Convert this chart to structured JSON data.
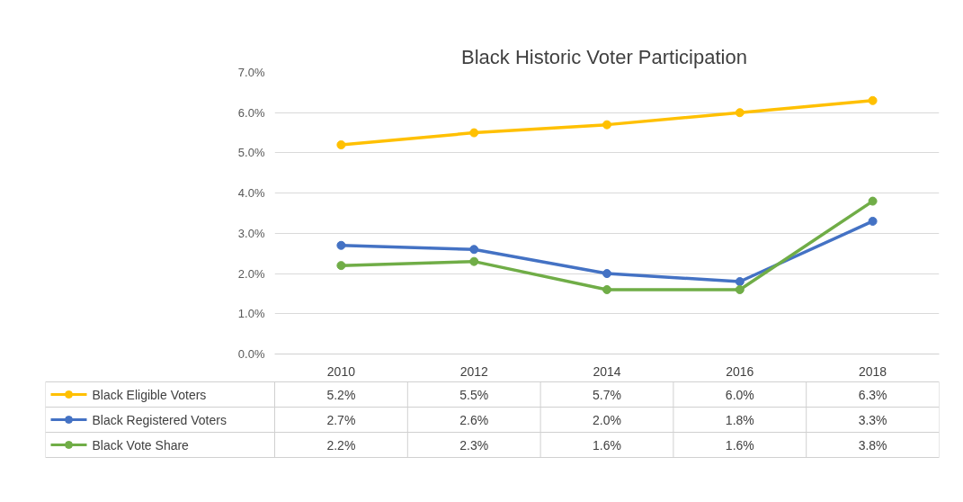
{
  "chart_data": {
    "type": "line",
    "title": "Black  Historic Voter Participation",
    "categories": [
      "2010",
      "2012",
      "2014",
      "2016",
      "2018"
    ],
    "series": [
      {
        "name": "Black Eligible Voters",
        "color": "#ffc000",
        "values": [
          5.2,
          5.5,
          5.7,
          6.0,
          6.3
        ],
        "value_labels": [
          "5.2%",
          "5.5%",
          "5.7%",
          "6.0%",
          "6.3%"
        ]
      },
      {
        "name": "Black Registered Voters",
        "color": "#4472c4",
        "values": [
          2.7,
          2.6,
          2.0,
          1.8,
          3.3
        ],
        "value_labels": [
          "2.7%",
          "2.6%",
          "2.0%",
          "1.8%",
          "3.3%"
        ]
      },
      {
        "name": "Black Vote Share",
        "color": "#70ad47",
        "values": [
          2.2,
          2.3,
          1.6,
          1.6,
          3.8
        ],
        "value_labels": [
          "2.2%",
          "2.3%",
          "1.6%",
          "1.6%",
          "3.8%"
        ]
      }
    ],
    "ylim": [
      0,
      7
    ],
    "yticks": [
      {
        "value": 0,
        "label": "0.0%"
      },
      {
        "value": 1,
        "label": "1.0%"
      },
      {
        "value": 2,
        "label": "2.0%"
      },
      {
        "value": 3,
        "label": "3.0%"
      },
      {
        "value": 4,
        "label": "4.0%"
      },
      {
        "value": 5,
        "label": "5.0%"
      },
      {
        "value": 6,
        "label": "6.0%"
      },
      {
        "value": 7,
        "label": "7.0%"
      }
    ],
    "grid": "y",
    "legend": "bottom",
    "marker": "circle",
    "line_style": "solid"
  }
}
